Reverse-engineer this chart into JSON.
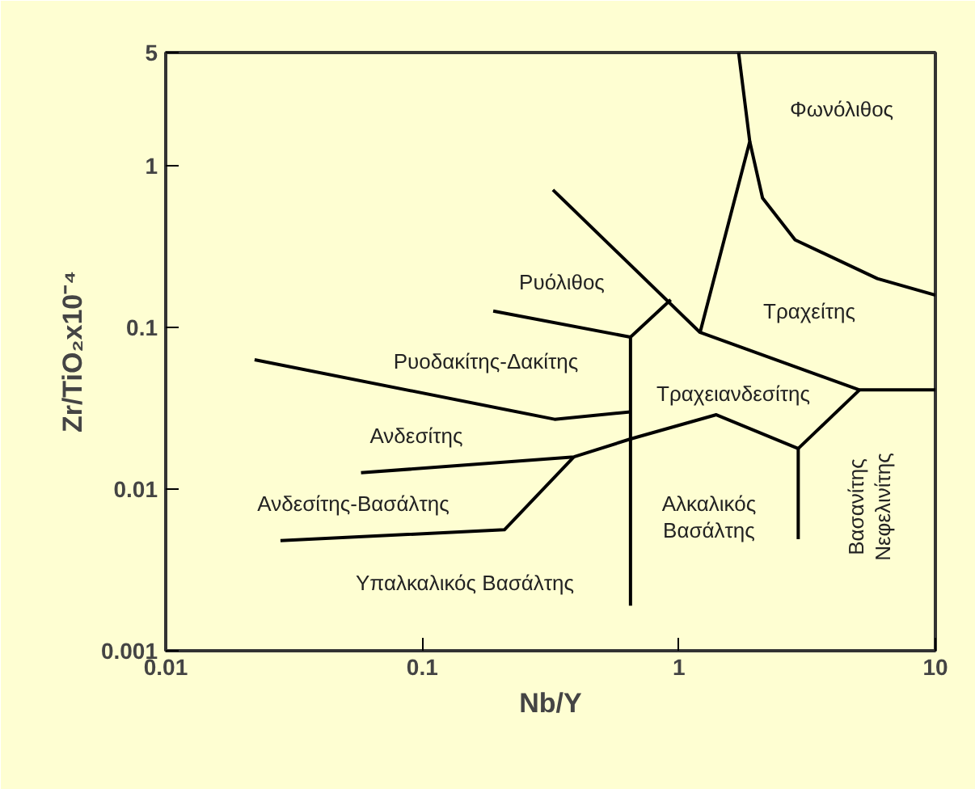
{
  "chart_data": {
    "type": "line",
    "xlabel": "Nb/Y",
    "ylabel": "Zr/TiO₂x10⁻⁴",
    "log": "xy",
    "grid": false,
    "marker": "none",
    "line_style": "solid",
    "xlim": [
      0.01,
      10
    ],
    "xticks": [
      0.01,
      0.1,
      1,
      10
    ],
    "ylim": [
      0.001,
      5
    ],
    "yticks": [
      0.001,
      0.01,
      0.1,
      1,
      5
    ],
    "series": [
      {
        "color": "#000000",
        "x": [
          0.323,
          1.21,
          5.06,
          10
        ],
        "values": [
          0.708,
          0.093,
          0.041,
          0.041
        ]
      },
      {
        "color": "#000000",
        "x": [
          0.189,
          0.648,
          0.93
        ],
        "values": [
          0.126,
          0.087,
          0.148
        ]
      },
      {
        "color": "#000000",
        "x": [
          1.71,
          1.89,
          1.21
        ],
        "values": [
          5,
          1.41,
          0.093
        ]
      },
      {
        "color": "#000000",
        "x": [
          1.89,
          2.12,
          2.84,
          5.94,
          10
        ],
        "values": [
          1.41,
          0.63,
          0.347,
          0.2,
          0.158
        ]
      },
      {
        "color": "#000000",
        "x": [
          0.0222,
          0.328,
          0.648
        ],
        "values": [
          0.063,
          0.027,
          0.03
        ]
      },
      {
        "color": "#000000",
        "x": [
          0.648,
          0.648
        ],
        "values": [
          0.087,
          0.0019
        ]
      },
      {
        "color": "#000000",
        "x": [
          0.0577,
          0.39,
          0.648,
          1.4,
          2.92,
          5.06
        ],
        "values": [
          0.0126,
          0.0158,
          0.0204,
          0.0288,
          0.0178,
          0.041
        ]
      },
      {
        "color": "#000000",
        "x": [
          2.92,
          2.92
        ],
        "values": [
          0.0178,
          0.0049
        ]
      },
      {
        "color": "#000000",
        "x": [
          0.028,
          0.209,
          0.39
        ],
        "values": [
          0.0048,
          0.0056,
          0.0158
        ]
      }
    ],
    "annotations": [
      "Φωνόλιθος",
      "Ρυόλιθος",
      "Τραχείτης",
      "Ρυοδακίτης-Δακίτης",
      "Τραχειανδεσίτης",
      "Ανδεσίτης",
      "Ανδεσίτης-Βασάλτης",
      "Υπαλκαλικός Βασάλτης",
      "Αλκαλικός\nΒασάλτης",
      "Βασανίτης\nΝεφελινίτης"
    ]
  }
}
